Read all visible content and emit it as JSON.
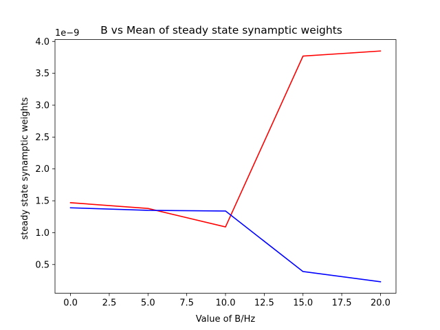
{
  "chart_data": {
    "type": "line",
    "title": "B vs Mean of steady state synamptic weights",
    "xlabel": "Value of B/Hz",
    "ylabel": "steady state synamptic weights",
    "offset_text": "1e−9",
    "x": [
      0,
      5,
      10,
      15,
      20
    ],
    "series": [
      {
        "color": "#ff0000",
        "values": [
          1.47,
          1.38,
          1.09,
          3.77,
          3.85
        ]
      },
      {
        "color": "#0000ff",
        "values": [
          1.39,
          1.35,
          1.34,
          0.39,
          0.23
        ]
      }
    ],
    "xlim": [
      -1.0,
      21.0
    ],
    "ylim": [
      0.05,
      4.03
    ],
    "xticks": [
      0.0,
      2.5,
      5.0,
      7.5,
      10.0,
      12.5,
      15.0,
      17.5,
      20.0
    ],
    "xtick_labels": [
      "0.0",
      "2.5",
      "5.0",
      "7.5",
      "10.0",
      "12.5",
      "15.0",
      "17.5",
      "20.0"
    ],
    "yticks": [
      0.5,
      1.0,
      1.5,
      2.0,
      2.5,
      3.0,
      3.5,
      4.0
    ],
    "ytick_labels": [
      "0.5",
      "1.0",
      "1.5",
      "2.0",
      "2.5",
      "3.0",
      "3.5",
      "4.0"
    ],
    "grid": false
  }
}
